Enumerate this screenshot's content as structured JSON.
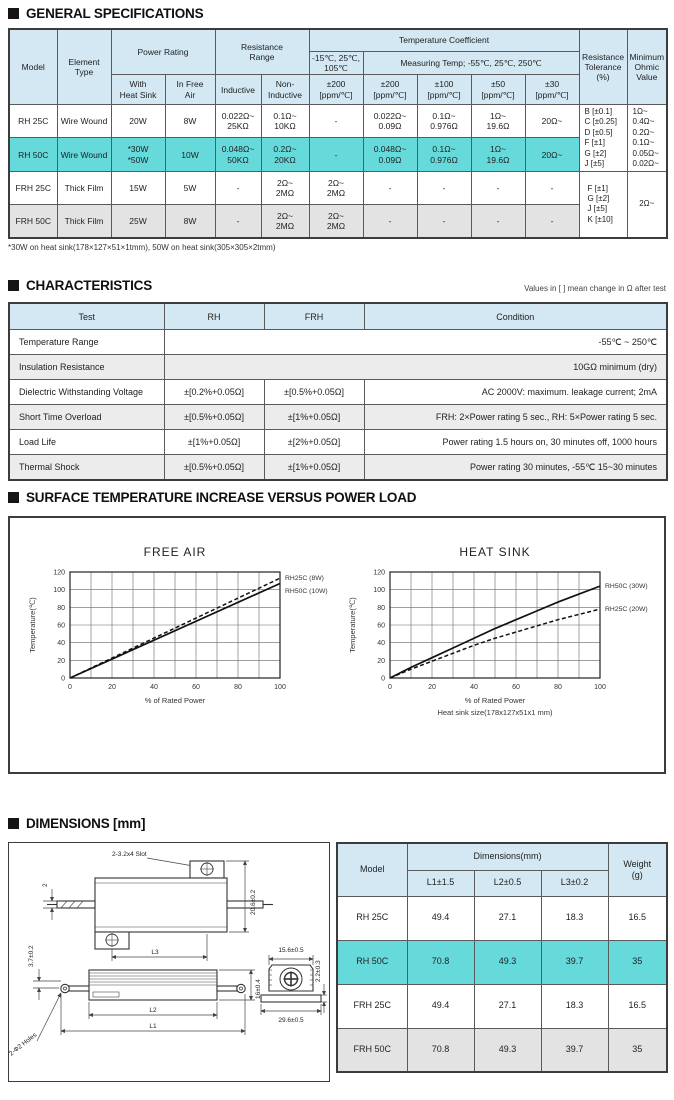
{
  "colors": {
    "header_blue": "#d3e8f2",
    "highlight_teal": "#66d9db",
    "highlight_gray": "#e3e3e3",
    "char_row_gray": "#ececec",
    "border_dark": "#3c3c3c"
  },
  "general": {
    "title": "GENERAL SPECIFICATIONS",
    "footnote": "*30W on heat sink(178×127×51×1tmm), 50W on heat sink(305×305×2tmm)",
    "header": {
      "model": "Model",
      "element": "Element\nType",
      "power": "Power Rating",
      "with_hs": "With\nHeat Sink",
      "free_air": "In Free\nAir",
      "res_range": "Resistance\nRange",
      "inductive": "Inductive",
      "non_inductive": "Non-\nInductive",
      "temp_coeff": "Temperature Coefficient",
      "tc_first": "-15℃, 25℃,\n105℃",
      "measuring": "Measuring Temp; -55℃, 25℃, 250℃",
      "tc1": "±200\n[ppm/℃]",
      "tc2": "±200\n[ppm/℃]",
      "tc3": "±100\n[ppm/℃]",
      "tc4": "±50\n[ppm/℃]",
      "tc5": "±30\n[ppm/℃]",
      "tolerance": "Resistance\nTolerance\n(%)",
      "min_ohmic": "Minimum\nOhmic\nValue"
    },
    "rows": [
      {
        "model": "RH 25C",
        "element": "Wire Wound",
        "with_hs": "20W",
        "free_air": "8W",
        "inductive": "0.022Ω~\n25KΩ",
        "non_inductive": "0.1Ω~\n10KΩ",
        "tc1": "-",
        "tc2": "0.022Ω~\n0.09Ω",
        "tc3": "0.1Ω~\n0.976Ω",
        "tc4": "1Ω~\n19.6Ω",
        "tc5": "20Ω~"
      },
      {
        "model": "RH 50C",
        "element": "Wire Wound",
        "with_hs": "*30W\n*50W",
        "free_air": "10W",
        "inductive": "0.048Ω~\n50KΩ",
        "non_inductive": "0.2Ω~\n20KΩ",
        "tc1": "-",
        "tc2": "0.048Ω~\n0.09Ω",
        "tc3": "0.1Ω~\n0.976Ω",
        "tc4": "1Ω~\n19.6Ω",
        "tc5": "20Ω~"
      },
      {
        "model": "FRH 25C",
        "element": "Thick Film",
        "with_hs": "15W",
        "free_air": "5W",
        "inductive": "-",
        "non_inductive": "2Ω~\n2MΩ",
        "tc1": "2Ω~\n2MΩ",
        "tc2": "-",
        "tc3": "-",
        "tc4": "-",
        "tc5": "-"
      },
      {
        "model": "FRH 50C",
        "element": "Thick Film",
        "with_hs": "25W",
        "free_air": "8W",
        "inductive": "-",
        "non_inductive": "2Ω~\n2MΩ",
        "tc1": "2Ω~\n2MΩ",
        "tc2": "-",
        "tc3": "-",
        "tc4": "-",
        "tc5": "-"
      }
    ],
    "tol_rh": "B [±0.1]\nC [±0.25]\nD [±0.5]\nF [±1]\nG [±2]\nJ [±5]",
    "min_rh": "1Ω~\n0.4Ω~\n0.2Ω~\n0.1Ω~\n0.05Ω~\n0.02Ω~",
    "tol_frh": "F [±1]\nG [±2]\nJ [±5]\nK [±10]",
    "min_frh": "2Ω~"
  },
  "characteristics": {
    "title": "CHARACTERISTICS",
    "note": "Values in [ ] mean change in Ω after test",
    "header": {
      "test": "Test",
      "rh": "RH",
      "frh": "FRH",
      "condition": "Condition"
    },
    "rows": [
      {
        "test": "Temperature Range",
        "merged": "-55℃ ~ 250℃"
      },
      {
        "test": "Insulation Resistance",
        "merged": "10GΩ minimum (dry)"
      },
      {
        "test": "Dielectric Withstanding Voltage",
        "rh": "±[0.2%+0.05Ω]",
        "frh": "±[0.5%+0.05Ω]",
        "condition": "AC 2000V: maximum. leakage current; 2mA"
      },
      {
        "test": "Short Time Overload",
        "rh": "±[0.5%+0.05Ω]",
        "frh": "±[1%+0.05Ω]",
        "condition": "FRH: 2×Power rating 5 sec., RH: 5×Power rating 5 sec."
      },
      {
        "test": "Load Life",
        "rh": "±[1%+0.05Ω]",
        "frh": "±[2%+0.05Ω]",
        "condition": "Power rating 1.5 hours on, 30 minutes off, 1000 hours"
      },
      {
        "test": "Thermal Shock",
        "rh": "±[0.5%+0.05Ω]",
        "frh": "±[1%+0.05Ω]",
        "condition": "Power rating 30 minutes, -55℃ 15~30 minutes"
      }
    ]
  },
  "surface": {
    "title": "SURFACE TEMPERATURE INCREASE VERSUS POWER LOAD"
  },
  "chart_data": [
    {
      "type": "line",
      "title": "FREE AIR",
      "xlabel": "% of Rated Power",
      "ylabel": "Temperature(℃)",
      "xlim": [
        0,
        100
      ],
      "ylim": [
        0,
        120
      ],
      "x_tick_labels": [
        0,
        20,
        40,
        60,
        80,
        100
      ],
      "x_grid_step": 10,
      "y_tick_step": 20,
      "grid": true,
      "legend_position": "right-of-line-end",
      "series": [
        {
          "name": "RH25C (8W)",
          "style": "dashed",
          "x": [
            0,
            100
          ],
          "y": [
            0,
            113
          ]
        },
        {
          "name": "RH50C (10W)",
          "style": "solid",
          "x": [
            0,
            100
          ],
          "y": [
            0,
            107
          ]
        }
      ]
    },
    {
      "type": "line",
      "title": "HEAT SINK",
      "xlabel": "% of Rated Power",
      "x_sublabel": "Heat sink size(178x127x51x1 mm)",
      "ylabel": "Temperature(℃)",
      "xlim": [
        0,
        100
      ],
      "ylim": [
        0,
        120
      ],
      "x_tick_labels": [
        0,
        20,
        40,
        60,
        80,
        100
      ],
      "x_grid_step": 10,
      "y_tick_step": 20,
      "grid": true,
      "legend_position": "right-of-line-end",
      "series": [
        {
          "name": "RH50C (30W)",
          "style": "solid",
          "x": [
            0,
            10,
            20,
            30,
            40,
            50,
            60,
            70,
            80,
            90,
            100
          ],
          "y": [
            0,
            12,
            23,
            34,
            45,
            56,
            66,
            76,
            86,
            95,
            104
          ]
        },
        {
          "name": "RH25C (20W)",
          "style": "dashed",
          "x": [
            0,
            10,
            20,
            30,
            40,
            50,
            60,
            70,
            80,
            90,
            100
          ],
          "y": [
            0,
            10,
            19,
            28,
            37,
            45,
            52,
            59,
            66,
            72,
            78
          ]
        }
      ]
    }
  ],
  "dimensions": {
    "title": "DIMENSIONS [mm]",
    "drawing_labels": {
      "slot": "2-3.2x4 Slot",
      "lead_dia": "2",
      "height": "20.6±0.2",
      "l3": "L3",
      "offset": "3.7±0.2",
      "holes": "2-Φ2 Holes",
      "body_h": "16±0.4",
      "l2": "L2",
      "l1": "L1",
      "top_w": "15.6±0.5",
      "base_t": "2.2±0.3",
      "flange_w": "29.6±0.5"
    },
    "table": {
      "header": {
        "model": "Model",
        "dims": "Dimensions(mm)",
        "l1": "L1±1.5",
        "l2": "L2±0.5",
        "l3": "L3±0.2",
        "weight": "Weight\n(g)"
      },
      "rows": [
        {
          "model": "RH 25C",
          "l1": "49.4",
          "l2": "27.1",
          "l3": "18.3",
          "weight": "16.5"
        },
        {
          "model": "RH 50C",
          "l1": "70.8",
          "l2": "49.3",
          "l3": "39.7",
          "weight": "35"
        },
        {
          "model": "FRH 25C",
          "l1": "49.4",
          "l2": "27.1",
          "l3": "18.3",
          "weight": "16.5"
        },
        {
          "model": "FRH 50C",
          "l1": "70.8",
          "l2": "49.3",
          "l3": "39.7",
          "weight": "35"
        }
      ]
    }
  }
}
